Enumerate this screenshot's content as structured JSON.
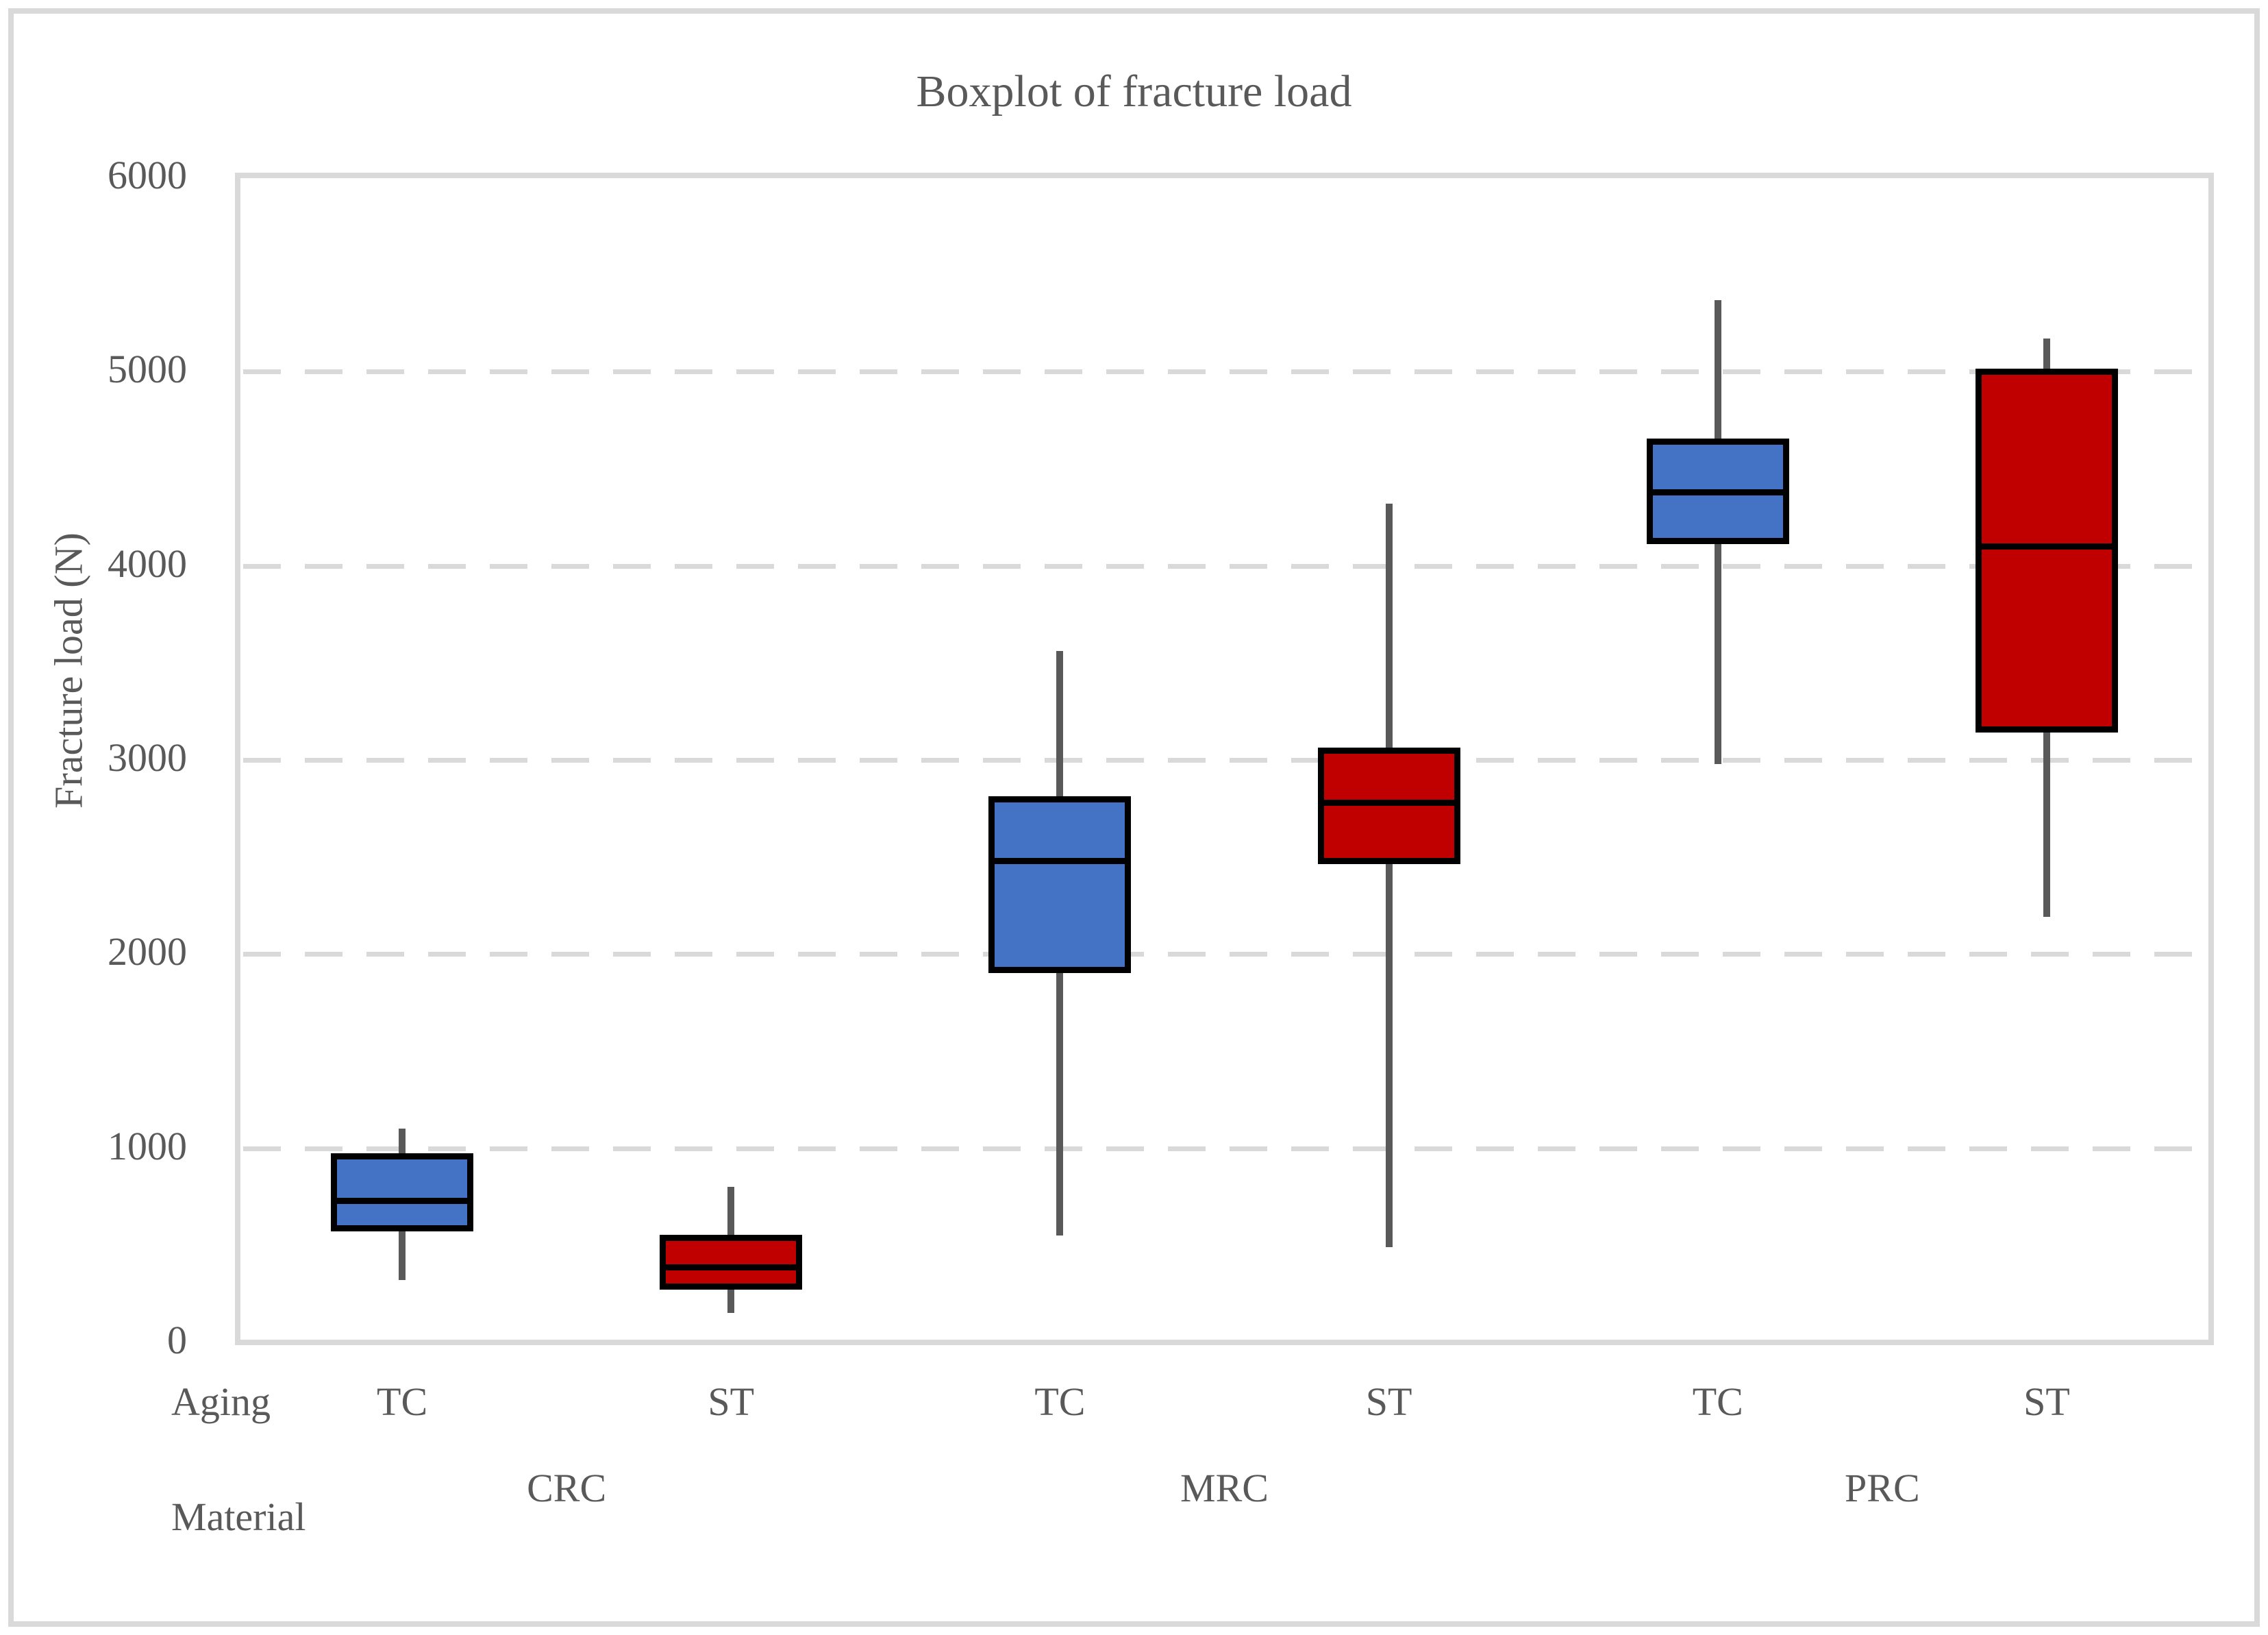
{
  "title": "Boxplot of fracture load",
  "y_axis": {
    "label": "Fracture load (N)"
  },
  "x_axis": {
    "aging_header": "Aging",
    "material_header": "Material"
  },
  "colors": {
    "tc_fill": "#4472C4",
    "st_fill": "#C00000",
    "box_border": "#000000",
    "whisker": "#595959",
    "grid": "#D9D9D9",
    "text": "#595959"
  },
  "chart_data": {
    "type": "boxplot",
    "title": "Boxplot of fracture load",
    "ylabel": "Fracture load (N)",
    "ylim": [
      0,
      6000
    ],
    "y_ticks": [
      0,
      1000,
      2000,
      3000,
      4000,
      5000,
      6000
    ],
    "grid": "horizontal dashed gridlines at 1000-5000, light gray",
    "legend": "none",
    "x_levels": {
      "aging_header": "Aging",
      "material_header": "Material"
    },
    "series_colors": {
      "TC": "#4472C4",
      "ST": "#C00000"
    },
    "groups": [
      {
        "material": "CRC",
        "boxes": [
          {
            "aging": "TC",
            "color_key": "TC",
            "low": 320,
            "q1": 590,
            "median": 730,
            "q3": 960,
            "high": 1100
          },
          {
            "aging": "ST",
            "color_key": "ST",
            "low": 150,
            "q1": 290,
            "median": 390,
            "q3": 540,
            "high": 800
          }
        ]
      },
      {
        "material": "MRC",
        "boxes": [
          {
            "aging": "TC",
            "color_key": "TC",
            "low": 550,
            "q1": 1920,
            "median": 2480,
            "q3": 2800,
            "high": 3560
          },
          {
            "aging": "ST",
            "color_key": "ST",
            "low": 490,
            "q1": 2480,
            "median": 2780,
            "q3": 3050,
            "high": 4320
          }
        ]
      },
      {
        "material": "PRC",
        "boxes": [
          {
            "aging": "TC",
            "color_key": "TC",
            "low": 2980,
            "q1": 4130,
            "median": 4380,
            "q3": 4640,
            "high": 5370
          },
          {
            "aging": "ST",
            "color_key": "ST",
            "low": 2190,
            "q1": 3160,
            "median": 4100,
            "q3": 5000,
            "high": 5170
          }
        ]
      }
    ]
  }
}
